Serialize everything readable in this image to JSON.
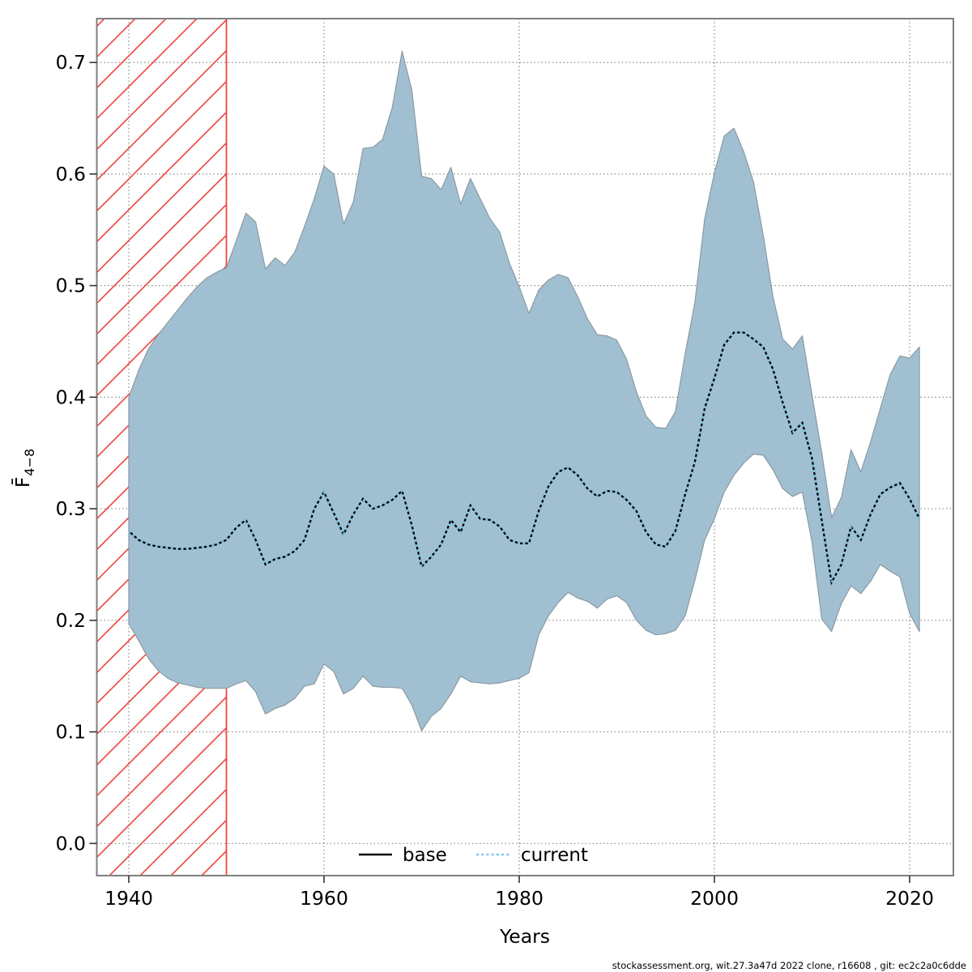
{
  "caption": "stockassessment.org, wit.27.3a47d 2022 clone, r16608 , git: ec2c2a0c6dde",
  "axes": {
    "x_label": "Years",
    "y_label_main": "F̄",
    "y_label_sub": "4−8",
    "x_ticks": [
      "1940",
      "1960",
      "1980",
      "2000",
      "2020"
    ],
    "x_tick_values": [
      1940,
      1960,
      1980,
      2000,
      2020
    ],
    "y_ticks": [
      "0.0",
      "0.1",
      "0.2",
      "0.3",
      "0.4",
      "0.5",
      "0.6",
      "0.7"
    ],
    "y_tick_values": [
      0.0,
      0.1,
      0.2,
      0.3,
      0.4,
      0.5,
      0.6,
      0.7
    ]
  },
  "legend": {
    "position": "bottom-center",
    "items": [
      {
        "label": "base",
        "style": "solid",
        "color": "#000000"
      },
      {
        "label": "current",
        "style": "dotted",
        "color": "#7ec8e8"
      }
    ]
  },
  "hatch_region": {
    "start_year": 1936.7,
    "end_year": 1950,
    "meaning": "hatched-period"
  },
  "colors": {
    "band_fill": "#a0c0d2",
    "band_edge": "#8c99a2",
    "base_line": "#000000",
    "current_line": "#7ec8e8",
    "hatch_red": "#ef433e",
    "grid": "#8c8c8c",
    "plot_border": "#7f7f7f",
    "tick": "#333333"
  },
  "chart_data": {
    "type": "line",
    "title": "",
    "xlabel": "Years",
    "ylabel": "F̄ 4−8",
    "xlim": [
      1936.7,
      2024.5
    ],
    "ylim": [
      -0.029,
      0.74
    ],
    "grid": true,
    "legend_position": "bottom-center",
    "x": [
      1940,
      1941,
      1942,
      1943,
      1944,
      1945,
      1946,
      1947,
      1948,
      1949,
      1950,
      1951,
      1952,
      1953,
      1954,
      1955,
      1956,
      1957,
      1958,
      1959,
      1960,
      1961,
      1962,
      1963,
      1964,
      1965,
      1966,
      1967,
      1968,
      1969,
      1970,
      1971,
      1972,
      1973,
      1974,
      1975,
      1976,
      1977,
      1978,
      1979,
      1980,
      1981,
      1982,
      1983,
      1984,
      1985,
      1986,
      1987,
      1988,
      1989,
      1990,
      1991,
      1992,
      1993,
      1994,
      1995,
      1996,
      1997,
      1998,
      1999,
      2000,
      2001,
      2002,
      2003,
      2004,
      2005,
      2006,
      2007,
      2008,
      2009,
      2010,
      2011,
      2012,
      2013,
      2014,
      2015,
      2016,
      2017,
      2018,
      2019,
      2020,
      2021
    ],
    "series": [
      {
        "name": "current",
        "values": [
          0.28,
          0.272,
          0.268,
          0.266,
          0.265,
          0.264,
          0.264,
          0.265,
          0.266,
          0.268,
          0.272,
          0.283,
          0.29,
          0.272,
          0.25,
          0.255,
          0.257,
          0.262,
          0.272,
          0.3,
          0.315,
          0.296,
          0.277,
          0.295,
          0.309,
          0.3,
          0.303,
          0.308,
          0.316,
          0.285,
          0.248,
          0.257,
          0.268,
          0.29,
          0.279,
          0.303,
          0.291,
          0.29,
          0.284,
          0.272,
          0.269,
          0.269,
          0.298,
          0.32,
          0.333,
          0.337,
          0.33,
          0.318,
          0.311,
          0.316,
          0.315,
          0.308,
          0.298,
          0.279,
          0.268,
          0.266,
          0.28,
          0.313,
          0.342,
          0.39,
          0.417,
          0.447,
          0.458,
          0.458,
          0.452,
          0.445,
          0.425,
          0.395,
          0.368,
          0.377,
          0.345,
          0.289,
          0.234,
          0.25,
          0.284,
          0.272,
          0.295,
          0.313,
          0.319,
          0.323,
          0.309,
          0.291
        ]
      },
      {
        "name": "base",
        "values": [
          0.28,
          0.272,
          0.268,
          0.266,
          0.265,
          0.264,
          0.264,
          0.265,
          0.266,
          0.268,
          0.272,
          0.283,
          0.29,
          0.272,
          0.25,
          0.255,
          0.257,
          0.262,
          0.272,
          0.3,
          0.315,
          0.296,
          0.277,
          0.295,
          0.309,
          0.3,
          0.303,
          0.308,
          0.316,
          0.285,
          0.248,
          0.257,
          0.268,
          0.29,
          0.279,
          0.303,
          0.291,
          0.29,
          0.284,
          0.272,
          0.269,
          0.269,
          0.298,
          0.32,
          0.333,
          0.337,
          0.33,
          0.318,
          0.311,
          0.316,
          0.315,
          0.308,
          0.298,
          0.279,
          0.268,
          0.266,
          0.28,
          0.313,
          0.342,
          0.39,
          0.417,
          0.447,
          0.458,
          0.458,
          0.452,
          0.445,
          0.425,
          0.395,
          0.368,
          0.377,
          0.345,
          0.289,
          0.234,
          0.25,
          0.284,
          0.272,
          0.295,
          0.313,
          0.319,
          0.323,
          0.309,
          0.291
        ]
      },
      {
        "name": "lower_ci",
        "values": [
          0.197,
          0.182,
          0.166,
          0.155,
          0.148,
          0.144,
          0.142,
          0.14,
          0.139,
          0.139,
          0.139,
          0.143,
          0.146,
          0.136,
          0.116,
          0.121,
          0.124,
          0.13,
          0.141,
          0.143,
          0.161,
          0.154,
          0.134,
          0.139,
          0.15,
          0.141,
          0.14,
          0.14,
          0.139,
          0.124,
          0.101,
          0.114,
          0.121,
          0.134,
          0.15,
          0.145,
          0.144,
          0.143,
          0.144,
          0.146,
          0.148,
          0.153,
          0.187,
          0.204,
          0.216,
          0.225,
          0.22,
          0.217,
          0.211,
          0.219,
          0.222,
          0.216,
          0.2,
          0.191,
          0.187,
          0.188,
          0.191,
          0.204,
          0.236,
          0.272,
          0.291,
          0.315,
          0.33,
          0.341,
          0.349,
          0.348,
          0.335,
          0.318,
          0.311,
          0.315,
          0.27,
          0.201,
          0.19,
          0.215,
          0.231,
          0.224,
          0.235,
          0.25,
          0.244,
          0.239,
          0.206,
          0.19
        ]
      },
      {
        "name": "upper_ci",
        "values": [
          0.4,
          0.424,
          0.443,
          0.456,
          0.467,
          0.478,
          0.489,
          0.499,
          0.507,
          0.512,
          0.516,
          0.54,
          0.565,
          0.557,
          0.515,
          0.525,
          0.518,
          0.53,
          0.553,
          0.578,
          0.607,
          0.6,
          0.555,
          0.575,
          0.623,
          0.624,
          0.631,
          0.66,
          0.71,
          0.675,
          0.598,
          0.596,
          0.586,
          0.606,
          0.573,
          0.596,
          0.578,
          0.56,
          0.548,
          0.52,
          0.499,
          0.475,
          0.496,
          0.505,
          0.51,
          0.507,
          0.49,
          0.47,
          0.456,
          0.455,
          0.451,
          0.434,
          0.405,
          0.383,
          0.373,
          0.372,
          0.387,
          0.439,
          0.485,
          0.56,
          0.601,
          0.634,
          0.641,
          0.62,
          0.593,
          0.545,
          0.49,
          0.452,
          0.443,
          0.455,
          0.402,
          0.35,
          0.292,
          0.31,
          0.353,
          0.333,
          0.36,
          0.39,
          0.42,
          0.437,
          0.435,
          0.445
        ]
      }
    ]
  }
}
